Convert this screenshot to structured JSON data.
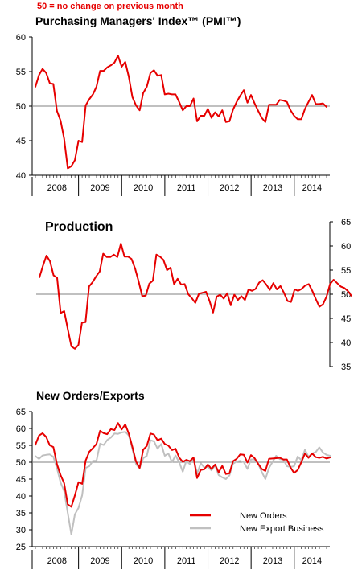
{
  "header": {
    "note": "50 =  no change on previous month",
    "pmi_title": "Purchasing Managers' Index™ (PMI™)",
    "production_title": "Production",
    "new_orders_title": "New Orders/Exports"
  },
  "colors": {
    "red": "#e60000",
    "grey": "#c0c0c0",
    "axis": "#000000",
    "ref": "#808080"
  },
  "chart_data": [
    {
      "type": "line",
      "title": "Purchasing Managers' Index™ (PMI™)",
      "ylim": [
        40,
        60
      ],
      "yticks": [
        "40",
        "45",
        "50",
        "55",
        "60"
      ],
      "reference_line": 50,
      "x_start": 2008.0,
      "x_step": 0.0833,
      "year_labels": [
        "2008",
        "2009",
        "2010",
        "2011",
        "2012",
        "2013",
        "2014"
      ],
      "series": [
        {
          "color": "red",
          "values": [
            52.8,
            54.5,
            55.4,
            54.8,
            53.3,
            53.2,
            49.3,
            47.9,
            45.3,
            41.0,
            41.3,
            42.2,
            45.0,
            44.8,
            50.1,
            51.0,
            51.7,
            52.8,
            55.1,
            55.1,
            55.6,
            55.9,
            56.3,
            57.3,
            55.7,
            56.4,
            54.2,
            51.3,
            50.1,
            49.4,
            51.9,
            52.8,
            54.8,
            55.2,
            54.4,
            54.5,
            51.7,
            51.8,
            51.7,
            51.7,
            50.6,
            49.4,
            50.0,
            50.0,
            51.1,
            47.8,
            48.6,
            48.6,
            49.6,
            48.3,
            49.1,
            48.5,
            49.4,
            47.7,
            47.8,
            49.5,
            50.6,
            51.5,
            52.3,
            50.5,
            51.6,
            50.4,
            49.3,
            48.3,
            47.7,
            50.2,
            50.2,
            50.2,
            50.9,
            50.8,
            50.6,
            49.4,
            48.6,
            48.1,
            48.1,
            49.6,
            50.6,
            51.6,
            50.3,
            50.3,
            50.4,
            49.9
          ]
        }
      ]
    },
    {
      "type": "line",
      "title": "Production",
      "ylim": [
        35,
        65
      ],
      "yticks": [
        "35",
        "40",
        "45",
        "50",
        "55",
        "60",
        "65"
      ],
      "reference_line": 50,
      "x_start": 2008.0,
      "x_step": 0.0833,
      "series": [
        {
          "color": "red",
          "values": [
            53.5,
            55.9,
            58.0,
            56.8,
            53.9,
            53.4,
            46.1,
            46.5,
            42.8,
            39.2,
            38.7,
            39.5,
            44.1,
            44.2,
            51.6,
            52.5,
            53.7,
            54.7,
            58.4,
            57.7,
            57.7,
            58.2,
            57.7,
            60.5,
            57.8,
            57.8,
            57.3,
            55.3,
            52.6,
            49.6,
            49.7,
            52.2,
            52.8,
            58.2,
            57.8,
            57.1,
            55.0,
            55.5,
            52.1,
            53.2,
            52.0,
            52.1,
            50.0,
            49.2,
            48.2,
            50.1,
            50.3,
            50.5,
            48.6,
            46.2,
            49.5,
            49.9,
            49.1,
            50.2,
            47.7,
            49.9,
            48.8,
            49.6,
            48.8,
            51.0,
            50.7,
            51.1,
            52.4,
            52.9,
            52.0,
            50.9,
            52.3,
            51.0,
            51.7,
            50.3,
            48.6,
            48.4,
            51.0,
            50.7,
            51.1,
            51.8,
            52.1,
            50.7,
            49.0,
            47.4,
            47.9,
            49.5,
            52.1,
            53.0,
            52.3,
            51.6,
            51.3,
            50.7,
            49.7
          ]
        }
      ]
    },
    {
      "type": "line",
      "title": "New Orders/Exports",
      "ylim": [
        25,
        65
      ],
      "yticks": [
        "25",
        "30",
        "35",
        "40",
        "45",
        "50",
        "55",
        "60",
        "65"
      ],
      "reference_line": 50,
      "x_start": 2008.0,
      "x_step": 0.0833,
      "year_labels": [
        "2008",
        "2009",
        "2010",
        "2011",
        "2012",
        "2013",
        "2014"
      ],
      "legend": [
        "New Orders",
        "New Export Business"
      ],
      "series": [
        {
          "name": "New Orders",
          "color": "red",
          "values": [
            55.2,
            57.9,
            58.6,
            57.5,
            55.0,
            54.5,
            49.4,
            46.2,
            43.8,
            37.5,
            36.8,
            40.2,
            44.1,
            43.6,
            50.5,
            53.1,
            54.2,
            55.4,
            59.3,
            58.6,
            58.3,
            59.8,
            59.5,
            61.6,
            59.7,
            61.2,
            58.4,
            54.5,
            50.2,
            48.3,
            53.7,
            54.8,
            58.5,
            58.2,
            56.5,
            57.0,
            55.4,
            54.9,
            53.6,
            54.0,
            51.4,
            50.1,
            50.7,
            50.3,
            51.4,
            45.3,
            47.7,
            47.9,
            49.3,
            48.0,
            49.3,
            47.0,
            48.9,
            46.5,
            46.7,
            50.3,
            51.0,
            52.3,
            52.2,
            49.9,
            52.1,
            51.2,
            49.5,
            48.0,
            47.4,
            51.0,
            51.1,
            51.2,
            51.3,
            50.8,
            50.8,
            48.4,
            46.8,
            47.7,
            50.0,
            52.6,
            51.3,
            52.6,
            51.5,
            51.3,
            51.6,
            51.1,
            51.4
          ]
        },
        {
          "name": "New Export Business",
          "color": "grey",
          "values": [
            51.8,
            51.0,
            52.0,
            52.2,
            52.3,
            51.6,
            48.2,
            44.0,
            41.5,
            35.0,
            28.6,
            34.6,
            36.5,
            40.2,
            48.3,
            48.8,
            50.4,
            50.4,
            55.5,
            55.1,
            56.6,
            57.3,
            58.5,
            58.4,
            58.8,
            59.0,
            57.9,
            53.9,
            49.4,
            48.2,
            51.2,
            51.9,
            56.5,
            56.2,
            54.0,
            55.4,
            51.9,
            52.6,
            50.0,
            52.0,
            50.0,
            47.2,
            50.4,
            49.4,
            51.2,
            46.6,
            49.7,
            48.4,
            48.6,
            47.6,
            49.0,
            46.2,
            45.5,
            45.0,
            46.1,
            49.6,
            50.2,
            50.4,
            50.0,
            48.0,
            50.8,
            50.8,
            49.5,
            47.1,
            45.0,
            48.3,
            50.1,
            51.9,
            50.9,
            50.8,
            48.8,
            48.6,
            48.8,
            51.7,
            50.6,
            53.7,
            51.6,
            52.6,
            53.0,
            54.4,
            52.9,
            52.2,
            51.9
          ]
        }
      ]
    }
  ]
}
